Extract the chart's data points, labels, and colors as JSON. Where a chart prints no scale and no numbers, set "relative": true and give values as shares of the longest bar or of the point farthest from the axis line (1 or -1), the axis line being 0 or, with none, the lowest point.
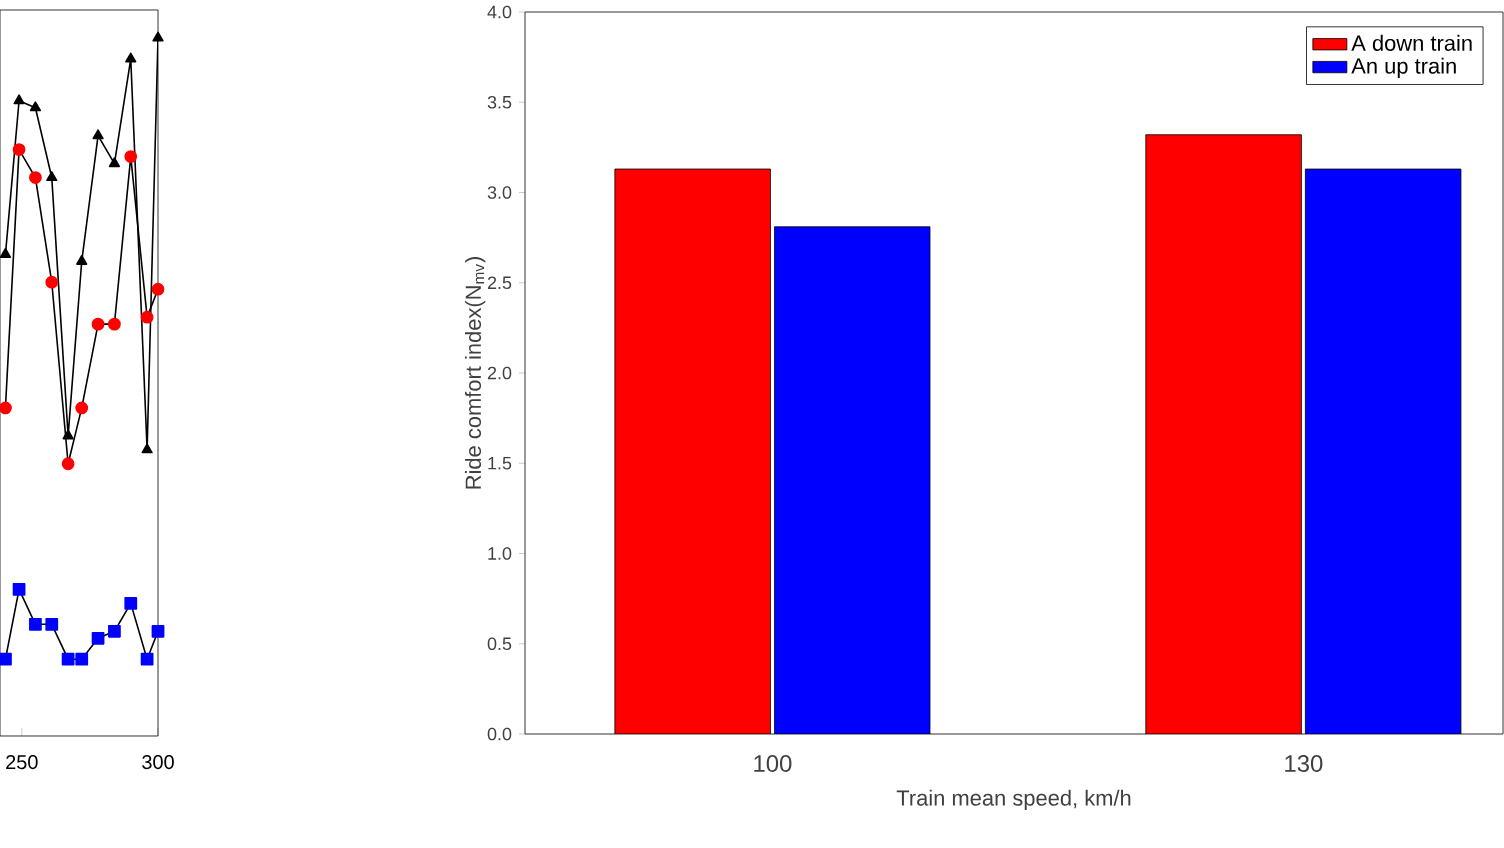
{
  "chart_data": [
    {
      "type": "line",
      "relative": true,
      "tick_labels": "x",
      "x": [
        244,
        249,
        255,
        261,
        267,
        272,
        278,
        284,
        290,
        296,
        300
      ],
      "xlim": [
        242,
        300
      ],
      "xticks": [
        250,
        300
      ],
      "series": [
        {
          "color": "#000000",
          "marker": "triangle",
          "values": [
            0.69,
            0.91,
            0.9,
            0.8,
            0.43,
            0.68,
            0.86,
            0.82,
            0.97,
            0.41,
            1
          ]
        },
        {
          "color": "#ff0000",
          "marker": "circle",
          "values": [
            0.47,
            0.84,
            0.8,
            0.65,
            0.39,
            0.47,
            0.59,
            0.59,
            0.83,
            0.6,
            0.64
          ]
        },
        {
          "color": "#0000ff",
          "marker": "square",
          "values": [
            0.11,
            0.21,
            0.16,
            0.16,
            0.11,
            0.11,
            0.14,
            0.15,
            0.19,
            0.11,
            0.15
          ]
        }
      ]
    },
    {
      "type": "bar",
      "xlabel": "Train mean speed, km/h",
      "ylabel": "Ride comfort index(N$_{mv}$)",
      "categories": [
        "100",
        "130"
      ],
      "legend": "top right",
      "ylim": [
        0,
        4
      ],
      "yticks": [
        {
          "value": 0,
          "label": "0.0"
        },
        {
          "value": 0.5,
          "label": "0.5"
        },
        {
          "value": 1,
          "label": "1.0"
        },
        {
          "value": 1.5,
          "label": "1.5"
        },
        {
          "value": 2,
          "label": "2.0"
        },
        {
          "value": 2.5,
          "label": "2.5"
        },
        {
          "value": 3,
          "label": "3.0"
        },
        {
          "value": 3.5,
          "label": "3.5"
        },
        {
          "value": 4,
          "label": "4.0"
        }
      ],
      "series": [
        {
          "name": "A down train",
          "color": "#ff0000",
          "values": [
            3.13,
            3.32
          ]
        },
        {
          "name": "An up train",
          "color": "#0000ff",
          "values": [
            2.81,
            3.13
          ]
        }
      ]
    }
  ]
}
